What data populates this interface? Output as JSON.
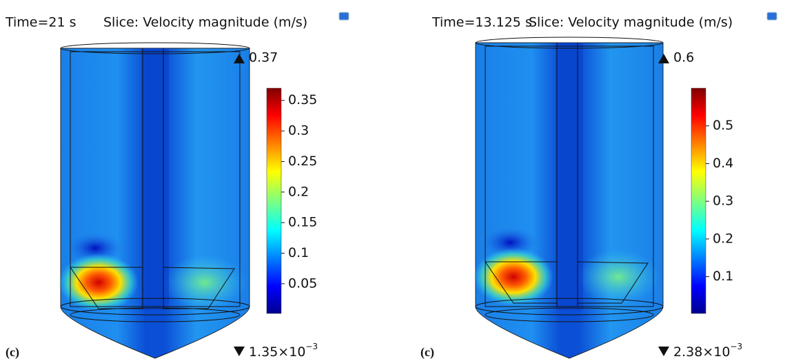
{
  "panels": [
    {
      "time": "Time=21 s",
      "title": "Slice: Velocity magnitude (m/s)",
      "label": "(c)",
      "range": [
        0.00135,
        0.37
      ],
      "min_label": {
        "mantissa": "1.35×10",
        "exponent": "−3"
      },
      "ticks": [
        0.35,
        0.3,
        0.25,
        0.2,
        0.15,
        0.1,
        0.05
      ]
    },
    {
      "time": "Time=13.125 s",
      "title": "Slice: Velocity magnitude (m/s)",
      "label": "(c)",
      "range": [
        0.00238,
        0.6
      ],
      "min_label": {
        "mantissa": "2.38×10",
        "exponent": "−3"
      },
      "ticks": [
        0.5,
        0.4,
        0.3,
        0.2,
        0.1
      ]
    }
  ]
}
